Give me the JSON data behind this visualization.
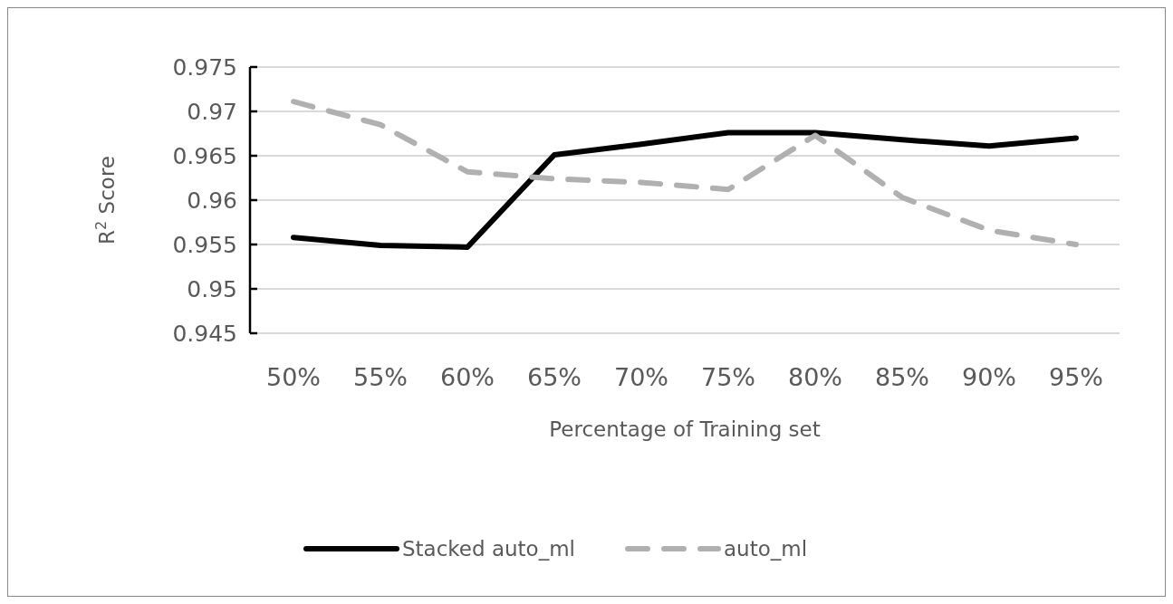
{
  "chart_data": {
    "type": "line",
    "xlabel": "Percentage of Training set",
    "ylabel": "R$^{2}$ Score",
    "categories": [
      "50%",
      "55%",
      "60%",
      "65%",
      "70%",
      "75%",
      "80%",
      "85%",
      "90%",
      "95%"
    ],
    "series": [
      {
        "name": "Stacked auto_ml",
        "color": "#000000",
        "line_style": "solid",
        "values": [
          0.9558,
          0.9549,
          0.9547,
          0.9651,
          0.9663,
          0.9676,
          0.9676,
          0.9668,
          0.9661,
          0.967
        ]
      },
      {
        "name": "auto_ml",
        "color": "#b0b0b0",
        "line_style": "dashed",
        "values": [
          0.9711,
          0.9685,
          0.9632,
          0.9624,
          0.962,
          0.9612,
          0.9673,
          0.9603,
          0.9566,
          0.955
        ]
      }
    ],
    "ylim": [
      0.945,
      0.975
    ],
    "yticks": [
      0.945,
      0.95,
      0.955,
      0.96,
      0.965,
      0.97,
      0.975
    ],
    "grid": "y",
    "legend": "bottom"
  }
}
